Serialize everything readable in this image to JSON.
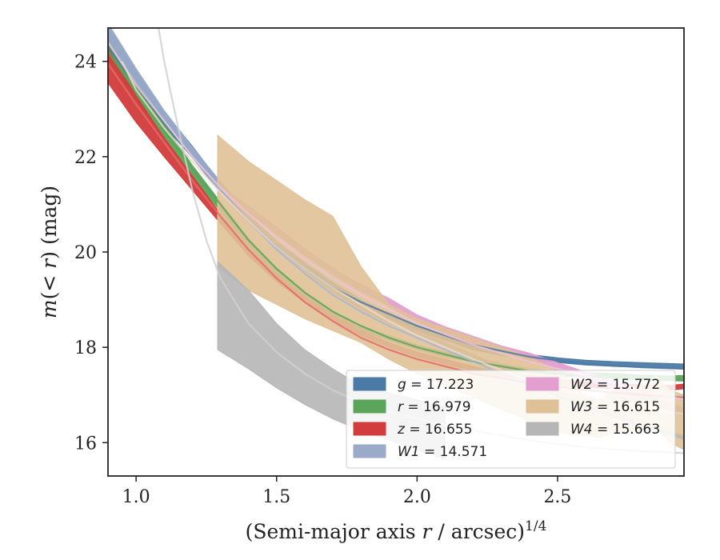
{
  "chart_data": {
    "type": "line",
    "xlabel": "(Semi-major axis r / arcsec)^(1/4)",
    "ylabel": "m(< r) (mag)",
    "xlim": [
      0.9,
      2.95
    ],
    "ylim": [
      24.7,
      15.3
    ],
    "y_inverted": true,
    "grid": false,
    "legend_position": "lower-right",
    "x_ticks": [
      1.0,
      1.5,
      2.0,
      2.5
    ],
    "x_tick_labels": [
      "1.0",
      "1.5",
      "2.0",
      "2.5"
    ],
    "y_ticks": [
      16,
      18,
      20,
      22,
      24
    ],
    "y_tick_labels": [
      "16",
      "18",
      "20",
      "22",
      "24"
    ],
    "series": [
      {
        "name": "g = 17.223",
        "label_var": "g",
        "label_val": "17.223",
        "color": "#4c7aa6",
        "x": [
          0.9,
          1.0,
          1.1,
          1.2,
          1.3,
          1.4,
          1.5,
          1.6,
          1.7,
          1.8,
          1.9,
          2.0,
          2.1,
          2.2,
          2.3,
          2.4,
          2.5,
          2.6,
          2.7,
          2.8,
          2.9,
          2.95
        ],
        "y": [
          24.5,
          23.6,
          22.8,
          22.1,
          21.35,
          20.7,
          20.15,
          19.7,
          19.3,
          18.95,
          18.65,
          18.4,
          18.2,
          18.0,
          17.88,
          17.8,
          17.73,
          17.68,
          17.65,
          17.63,
          17.61,
          17.6
        ],
        "band_width": [
          0.25,
          0.2,
          0.15,
          0.12,
          0.1,
          0.08,
          0.07,
          0.06,
          0.06,
          0.05,
          0.05,
          0.05,
          0.05,
          0.05,
          0.05,
          0.05,
          0.05,
          0.05,
          0.05,
          0.05,
          0.05,
          0.05
        ]
      },
      {
        "name": "r = 16.979",
        "label_var": "r",
        "label_val": "16.979",
        "color": "#5aa55a",
        "x": [
          0.9,
          1.0,
          1.1,
          1.2,
          1.3,
          1.4,
          1.5,
          1.6,
          1.7,
          1.8,
          1.9,
          2.0,
          2.1,
          2.2,
          2.3,
          2.4,
          2.5,
          2.6,
          2.7,
          2.8,
          2.9,
          2.95
        ],
        "y": [
          24.3,
          23.4,
          22.55,
          21.7,
          20.95,
          20.2,
          19.6,
          19.1,
          18.7,
          18.4,
          18.2,
          18.0,
          17.85,
          17.75,
          17.6,
          17.5,
          17.45,
          17.42,
          17.4,
          17.37,
          17.35,
          17.36
        ],
        "band_width": [
          0.25,
          0.2,
          0.15,
          0.12,
          0.1,
          0.08,
          0.07,
          0.06,
          0.06,
          0.05,
          0.05,
          0.05,
          0.05,
          0.05,
          0.05,
          0.05,
          0.05,
          0.05,
          0.05,
          0.05,
          0.05,
          0.05
        ]
      },
      {
        "name": "z = 16.655",
        "label_var": "z",
        "label_val": "16.655",
        "color": "#d23c3c",
        "x": [
          0.9,
          1.0,
          1.1,
          1.2,
          1.3,
          1.4,
          1.5,
          1.6,
          1.7,
          1.8,
          1.9,
          2.0,
          2.1,
          2.2,
          2.3,
          2.4,
          2.5,
          2.6,
          2.7,
          2.8,
          2.9,
          2.95
        ],
        "y": [
          23.9,
          23.0,
          22.2,
          21.45,
          20.7,
          20.0,
          19.45,
          19.0,
          18.6,
          18.3,
          18.05,
          17.85,
          17.7,
          17.55,
          17.42,
          17.33,
          17.27,
          17.22,
          17.18,
          17.16,
          17.15,
          17.18
        ],
        "band_width": [
          0.35,
          0.28,
          0.2,
          0.15,
          0.1,
          0.08,
          0.07,
          0.06,
          0.06,
          0.05,
          0.05,
          0.05,
          0.05,
          0.05,
          0.05,
          0.05,
          0.05,
          0.05,
          0.05,
          0.05,
          0.05,
          0.05
        ]
      },
      {
        "name": "W1 = 14.571",
        "label_var": "W1",
        "label_val": "14.571",
        "color": "#9aaac8",
        "x": [
          0.9,
          1.0,
          1.1,
          1.2,
          1.3,
          1.4,
          1.5,
          1.6,
          1.7,
          1.8,
          1.9,
          2.0,
          2.1,
          2.2,
          2.3,
          2.4,
          2.5,
          2.6,
          2.7,
          2.8,
          2.9,
          2.95
        ],
        "y": [
          24.6,
          23.7,
          22.85,
          22.1,
          21.4,
          20.75,
          20.15,
          19.65,
          19.2,
          18.85,
          18.55,
          18.3,
          18.05,
          17.8,
          17.55,
          17.3,
          17.05,
          16.8,
          16.6,
          16.4,
          16.2,
          16.1
        ],
        "band_width": [
          0.2,
          0.15,
          0.12,
          0.1,
          0.08,
          0.07,
          0.06,
          0.05,
          0.05,
          0.05,
          0.05,
          0.05,
          0.05,
          0.05,
          0.05,
          0.05,
          0.05,
          0.05,
          0.05,
          0.05,
          0.05,
          0.05
        ]
      },
      {
        "name": "W2 = 15.772",
        "label_var": "W2",
        "label_val": "15.772",
        "color": "#e39fcd",
        "x": [
          1.3,
          1.4,
          1.5,
          1.6,
          1.7,
          1.8,
          1.9,
          2.0,
          2.1,
          2.2,
          2.3,
          2.4,
          2.5,
          2.6,
          2.7,
          2.8,
          2.9,
          2.95
        ],
        "y": [
          21.3,
          20.9,
          20.45,
          20.0,
          19.6,
          19.25,
          18.95,
          18.6,
          18.35,
          18.15,
          17.95,
          17.8,
          17.6,
          17.4,
          17.2,
          17.0,
          16.75,
          16.65
        ],
        "band_width": [
          0.08,
          0.07,
          0.07,
          0.07,
          0.07,
          0.07,
          0.08,
          0.08,
          0.08,
          0.08,
          0.08,
          0.08,
          0.08,
          0.08,
          0.08,
          0.08,
          0.08,
          0.08
        ]
      },
      {
        "name": "W3 = 16.615",
        "label_var": "W3",
        "label_val": "16.615",
        "color": "#dfc197",
        "x": [
          1.29,
          1.4,
          1.5,
          1.6,
          1.7,
          1.8,
          1.9,
          2.0,
          2.1,
          2.2,
          2.3,
          2.4,
          2.5,
          2.55,
          2.6,
          2.65,
          2.7,
          2.75,
          2.8,
          2.85,
          2.9,
          2.95
        ],
        "y_low": [
          22.45,
          21.9,
          21.5,
          21.1,
          20.75,
          19.7,
          18.9,
          18.6,
          18.4,
          18.2,
          18.0,
          17.8,
          17.5,
          17.3,
          16.95,
          16.9,
          17.1,
          17.15,
          17.2,
          17.4,
          17.1,
          17.0
        ],
        "y_high": [
          19.7,
          19.2,
          18.9,
          18.6,
          18.35,
          18.1,
          17.75,
          17.45,
          17.2,
          16.95,
          16.7,
          16.45,
          16.25,
          16.15,
          16.15,
          16.1,
          16.2,
          16.2,
          16.25,
          16.3,
          16.0,
          15.85
        ]
      },
      {
        "name": "W4 = 15.663",
        "label_var": "W4",
        "label_val": "15.663",
        "color": "#b6b6b6",
        "x": [
          1.29,
          1.4,
          1.5,
          1.6,
          1.7,
          1.8,
          1.9,
          2.0,
          2.1
        ],
        "y_low": [
          19.8,
          19.2,
          18.5,
          17.95,
          17.55,
          17.2,
          17.05,
          16.9,
          16.75
        ],
        "y_high": [
          17.95,
          17.55,
          17.15,
          16.8,
          16.5,
          16.25,
          16.05,
          15.85,
          15.65
        ]
      }
    ],
    "model_curves": [
      {
        "of": "g",
        "color": "#4c7aa6",
        "x": [
          0.9,
          1.0,
          1.1,
          1.2,
          1.3,
          1.4,
          1.5,
          1.6,
          1.7,
          1.8,
          1.9,
          2.0,
          2.2,
          2.4,
          2.6,
          2.8,
          2.95
        ],
        "y": [
          24.3,
          23.5,
          22.7,
          22.0,
          21.3,
          20.65,
          20.1,
          19.65,
          19.25,
          18.95,
          18.7,
          18.45,
          18.05,
          17.8,
          17.65,
          17.58,
          17.55
        ]
      },
      {
        "of": "r",
        "color": "#5aa55a",
        "x": [
          0.9,
          1.0,
          1.1,
          1.2,
          1.3,
          1.4,
          1.5,
          1.6,
          1.7,
          1.8,
          1.9,
          2.0,
          2.2,
          2.4,
          2.6,
          2.8,
          2.95
        ],
        "y": [
          24.2,
          23.35,
          22.55,
          21.75,
          21.0,
          20.25,
          19.65,
          19.15,
          18.75,
          18.45,
          18.2,
          18.0,
          17.7,
          17.5,
          17.4,
          17.33,
          17.3
        ]
      },
      {
        "of": "z",
        "color": "#e56a6a",
        "x": [
          0.9,
          1.0,
          1.1,
          1.2,
          1.3,
          1.4,
          1.5,
          1.6,
          1.7,
          1.8,
          1.9,
          2.0,
          2.2,
          2.4,
          2.6,
          2.8,
          2.95
        ],
        "y": [
          23.95,
          23.1,
          22.3,
          21.5,
          20.75,
          20.05,
          19.45,
          18.95,
          18.55,
          18.2,
          17.95,
          17.75,
          17.45,
          17.25,
          17.1,
          17.0,
          16.95
        ]
      },
      {
        "of": "W1",
        "color": "#a8b6d2",
        "x": [
          0.9,
          1.0,
          1.1,
          1.2,
          1.3,
          1.4,
          1.5,
          1.6,
          1.7,
          1.8,
          1.9,
          2.0,
          2.2,
          2.4,
          2.6,
          2.8,
          2.95
        ],
        "y": [
          24.4,
          23.55,
          22.75,
          22.0,
          21.3,
          20.65,
          20.05,
          19.55,
          19.1,
          18.75,
          18.45,
          18.2,
          17.7,
          17.2,
          16.75,
          16.35,
          16.1
        ]
      },
      {
        "of": "W2",
        "color": "#f0c2dc",
        "x": [
          0.9,
          1.0,
          1.1,
          1.2,
          1.3,
          1.4,
          1.5,
          1.6,
          1.7,
          1.8,
          1.9,
          2.0,
          2.2,
          2.4,
          2.6,
          2.8,
          2.95
        ],
        "y": [
          24.4,
          23.5,
          22.75,
          22.0,
          21.35,
          20.8,
          20.3,
          19.85,
          19.45,
          19.1,
          18.8,
          18.5,
          18.05,
          17.7,
          17.4,
          17.1,
          16.9
        ]
      },
      {
        "of": "W3",
        "color": "#ecd9c8",
        "x": [
          0.95,
          1.0,
          1.1,
          1.2,
          1.3,
          1.4,
          1.5,
          1.6,
          1.7,
          1.8,
          1.9,
          2.0,
          2.2,
          2.4,
          2.6,
          2.8,
          2.95
        ],
        "y": [
          24.0,
          23.4,
          22.6,
          21.9,
          21.25,
          20.65,
          20.1,
          19.65,
          19.25,
          18.9,
          18.55,
          18.25,
          17.75,
          17.3,
          17.0,
          16.75,
          16.6
        ]
      },
      {
        "of": "W4",
        "color": "#d0d0d0",
        "x": [
          1.08,
          1.1,
          1.15,
          1.2,
          1.25,
          1.3,
          1.4,
          1.5,
          1.6,
          1.7,
          1.8,
          1.9,
          2.0,
          2.2,
          2.4,
          2.6,
          2.8,
          2.95
        ],
        "y": [
          24.7,
          24.0,
          22.6,
          21.3,
          20.25,
          19.45,
          18.5,
          17.9,
          17.45,
          17.1,
          16.85,
          16.65,
          16.5,
          16.25,
          16.05,
          15.9,
          15.82,
          15.78
        ]
      }
    ]
  }
}
